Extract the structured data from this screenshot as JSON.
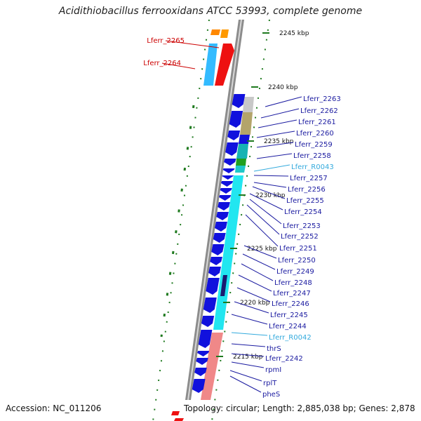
{
  "title": "Acidithiobacillus ferrooxidans ATCC 53993, complete genome",
  "footer": {
    "accession": "Accession: NC_011206",
    "summary": "Topology: circular; Length: 2,885,038 bp; Genes: 2,878"
  },
  "colors": {
    "backbone": "#8c8c8c",
    "forward_cds": "#ee1111",
    "reverse_cds": "#1111dd",
    "rna": "#22aacc",
    "label_red": "#cc0000",
    "label_blue": "#1a1aa0",
    "label_cyan": "#33aadd",
    "tick_green": "#1f7a1f"
  },
  "ticks": [
    "2245 kbp",
    "2240 kbp",
    "2235 kbp",
    "2230 kbp",
    "2225 kbp",
    "2220 kbp",
    "2215 kbp"
  ],
  "genes": [
    {
      "label": "Lferr_2265",
      "color": "red"
    },
    {
      "label": "Lferr_2264",
      "color": "red"
    },
    {
      "label": "Lferr_2263",
      "color": "blue"
    },
    {
      "label": "Lferr_2262",
      "color": "blue"
    },
    {
      "label": "Lferr_2261",
      "color": "blue"
    },
    {
      "label": "Lferr_2260",
      "color": "blue"
    },
    {
      "label": "Lferr_2259",
      "color": "blue"
    },
    {
      "label": "Lferr_2258",
      "color": "blue"
    },
    {
      "label": "Lferr_R0043",
      "color": "cyan"
    },
    {
      "label": "Lferr_2257",
      "color": "blue"
    },
    {
      "label": "Lferr_2256",
      "color": "blue"
    },
    {
      "label": "Lferr_2255",
      "color": "blue"
    },
    {
      "label": "Lferr_2254",
      "color": "blue"
    },
    {
      "label": "Lferr_2253",
      "color": "blue"
    },
    {
      "label": "Lferr_2252",
      "color": "blue"
    },
    {
      "label": "Lferr_2251",
      "color": "blue"
    },
    {
      "label": "Lferr_2250",
      "color": "blue"
    },
    {
      "label": "Lferr_2249",
      "color": "blue"
    },
    {
      "label": "Lferr_2248",
      "color": "blue"
    },
    {
      "label": "Lferr_2247",
      "color": "blue"
    },
    {
      "label": "Lferr_2246",
      "color": "blue"
    },
    {
      "label": "Lferr_2245",
      "color": "blue"
    },
    {
      "label": "Lferr_2244",
      "color": "blue"
    },
    {
      "label": "Lferr_R0042",
      "color": "cyan"
    },
    {
      "label": "thrS",
      "color": "blue"
    },
    {
      "label": "Lferr_2242",
      "color": "blue"
    },
    {
      "label": "rpmI",
      "color": "blue"
    },
    {
      "label": "rplT",
      "color": "blue"
    },
    {
      "label": "pheS",
      "color": "blue"
    }
  ]
}
